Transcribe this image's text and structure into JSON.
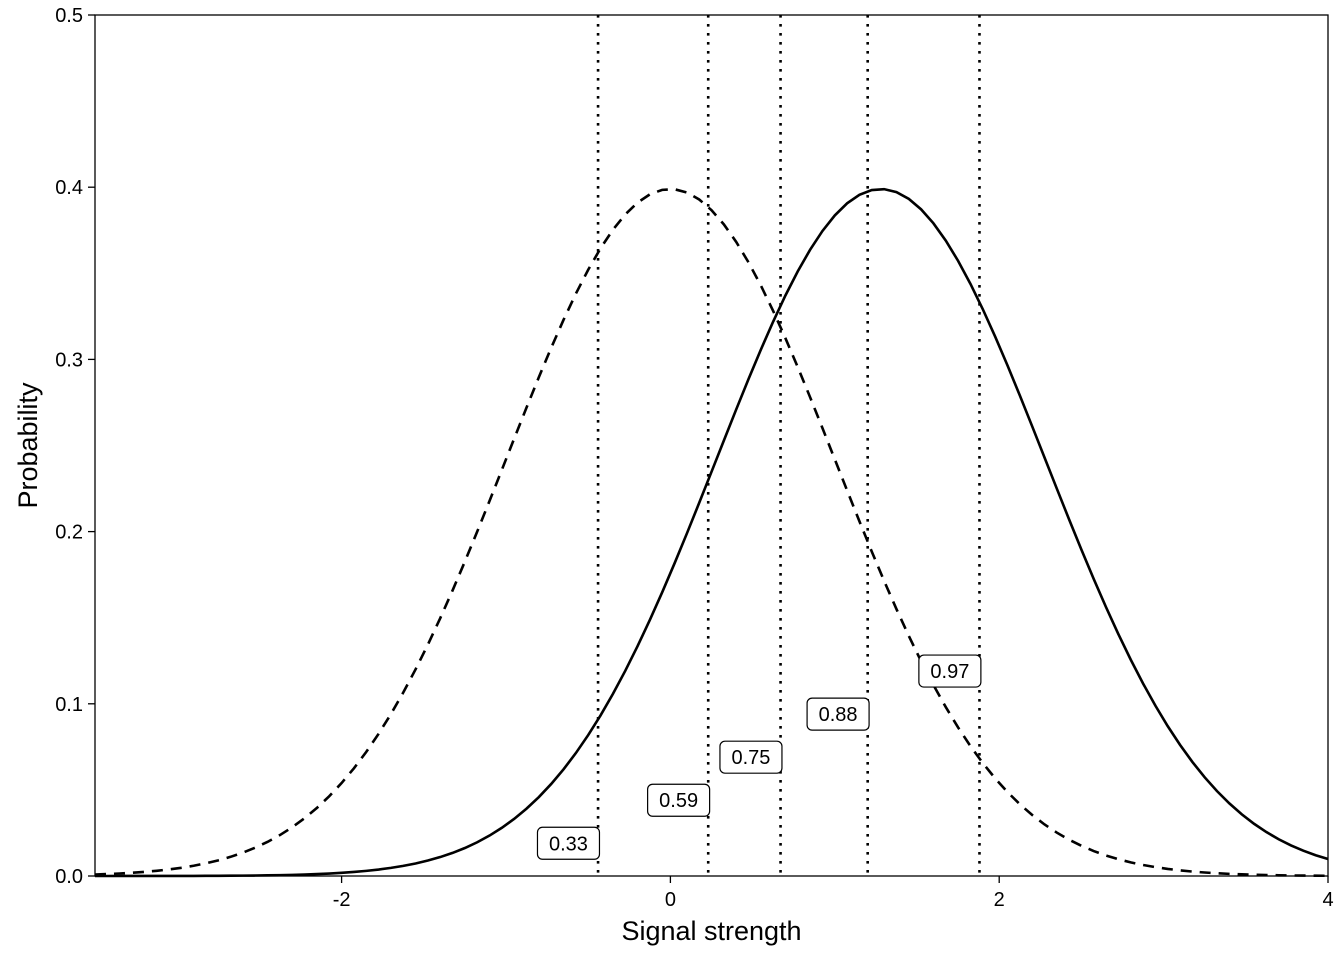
{
  "chart_data": {
    "type": "line",
    "xlabel": "Signal strength",
    "ylabel": "Probability",
    "xlim": [
      -3.5,
      4
    ],
    "ylim": [
      0,
      0.5
    ],
    "x_ticks": [
      {
        "value": -2,
        "label": "-2"
      },
      {
        "value": 0,
        "label": "0"
      },
      {
        "value": 2,
        "label": "2"
      },
      {
        "value": 4,
        "label": "4"
      }
    ],
    "y_ticks": [
      {
        "value": 0,
        "label": "0.0"
      },
      {
        "value": 0.1,
        "label": "0.1"
      },
      {
        "value": 0.2,
        "label": "0.2"
      },
      {
        "value": 0.3,
        "label": "0.3"
      },
      {
        "value": 0.4,
        "label": "0.4"
      },
      {
        "value": 0.5,
        "label": "0.5"
      }
    ],
    "grid": false,
    "series": [
      {
        "line_style": "dashed",
        "distribution": "normal",
        "mean": 0,
        "sd": 1,
        "color": "#000000"
      },
      {
        "line_style": "solid",
        "distribution": "normal",
        "mean": 1.28,
        "sd": 1,
        "color": "#000000"
      }
    ],
    "thresholds": [
      {
        "x": -0.44,
        "label": "0.33",
        "label_x": -0.62,
        "label_y": 0.019
      },
      {
        "x": 0.23,
        "label": "0.59",
        "label_x": 0.05,
        "label_y": 0.044
      },
      {
        "x": 0.67,
        "label": "0.75",
        "label_x": 0.49,
        "label_y": 0.069
      },
      {
        "x": 1.2,
        "label": "0.88",
        "label_x": 1.02,
        "label_y": 0.094
      },
      {
        "x": 1.88,
        "label": "0.97",
        "label_x": 1.7,
        "label_y": 0.119
      }
    ]
  }
}
